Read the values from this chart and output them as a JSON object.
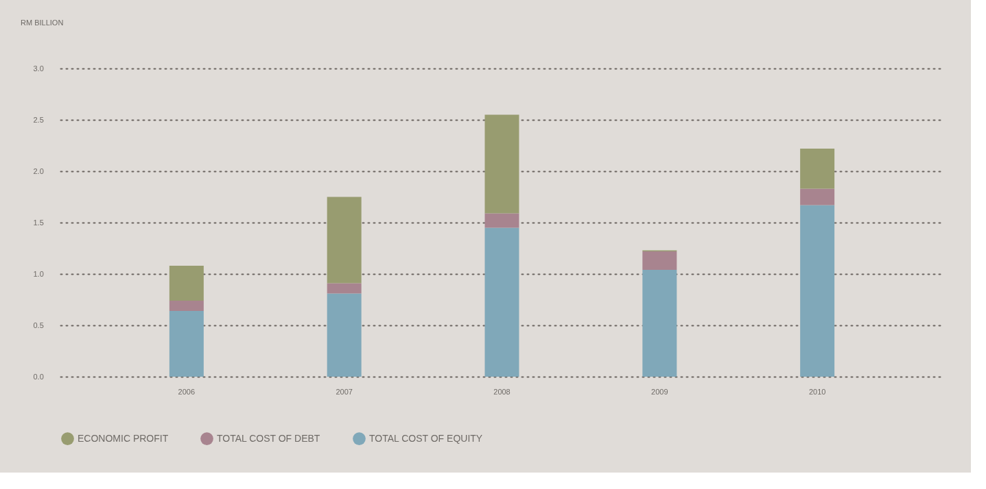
{
  "chart_data": {
    "type": "bar",
    "stacked": true,
    "ylabel": "RM BILLION",
    "categories": [
      "2006",
      "2007",
      "2008",
      "2009",
      "2010"
    ],
    "series": [
      {
        "name": "TOTAL COST OF EQUITY",
        "color": "#80a8b9",
        "values": [
          0.64,
          0.81,
          1.45,
          1.04,
          1.67
        ]
      },
      {
        "name": "TOTAL COST OF DEBT",
        "color": "#a8848f",
        "values": [
          0.1,
          0.1,
          0.14,
          0.18,
          0.16
        ]
      },
      {
        "name": "ECONOMIC PROFIT",
        "color": "#989c70",
        "values": [
          0.34,
          0.84,
          0.96,
          0.01,
          0.39
        ]
      }
    ],
    "ylim": [
      0,
      3
    ],
    "yticks": [
      {
        "value": 0,
        "label": "0.0"
      },
      {
        "value": 0.5,
        "label": "0.5"
      },
      {
        "value": 1,
        "label": "1.0"
      },
      {
        "value": 1.5,
        "label": "1.5"
      },
      {
        "value": 2,
        "label": "2.0"
      },
      {
        "value": 2.5,
        "label": "2.5"
      },
      {
        "value": 3,
        "label": "3.0"
      }
    ],
    "grid": "y",
    "legend": "bottom left"
  }
}
